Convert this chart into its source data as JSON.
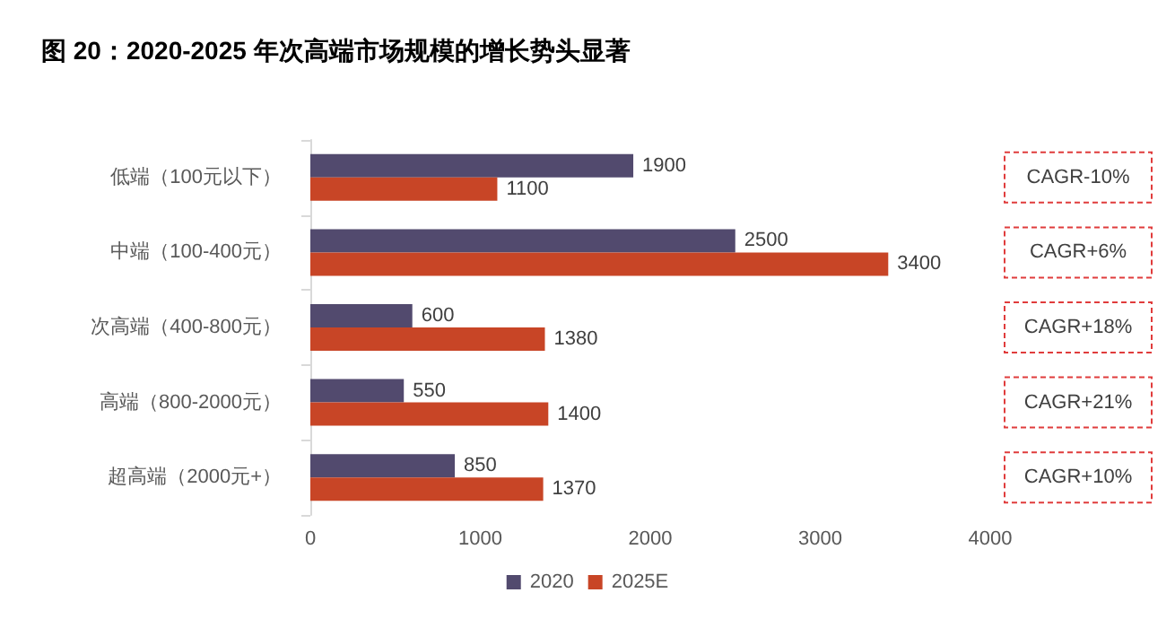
{
  "chart_data": {
    "type": "bar",
    "orientation": "horizontal",
    "title": "图 20：2020-2025 年次高端市场规模的增长势头显著",
    "categories": [
      "低端（100元以下）",
      "中端（100-400元）",
      "次高端（400-800元）",
      "高端（800-2000元）",
      "超高端（2000元+）"
    ],
    "series": [
      {
        "name": "2020",
        "color": "#524a6e",
        "values": [
          1900,
          2500,
          600,
          550,
          850
        ]
      },
      {
        "name": "2025E",
        "color": "#c84526",
        "values": [
          1100,
          3400,
          1380,
          1400,
          1370
        ]
      }
    ],
    "xlim": [
      0,
      4000
    ],
    "xticks": [
      0,
      1000,
      2000,
      3000,
      4000
    ],
    "data_labels": true,
    "grid": false,
    "legend": "bottom",
    "annotations": [
      "CAGR-10%",
      "CAGR+6%",
      "CAGR+18%",
      "CAGR+21%",
      "CAGR+10%"
    ]
  }
}
